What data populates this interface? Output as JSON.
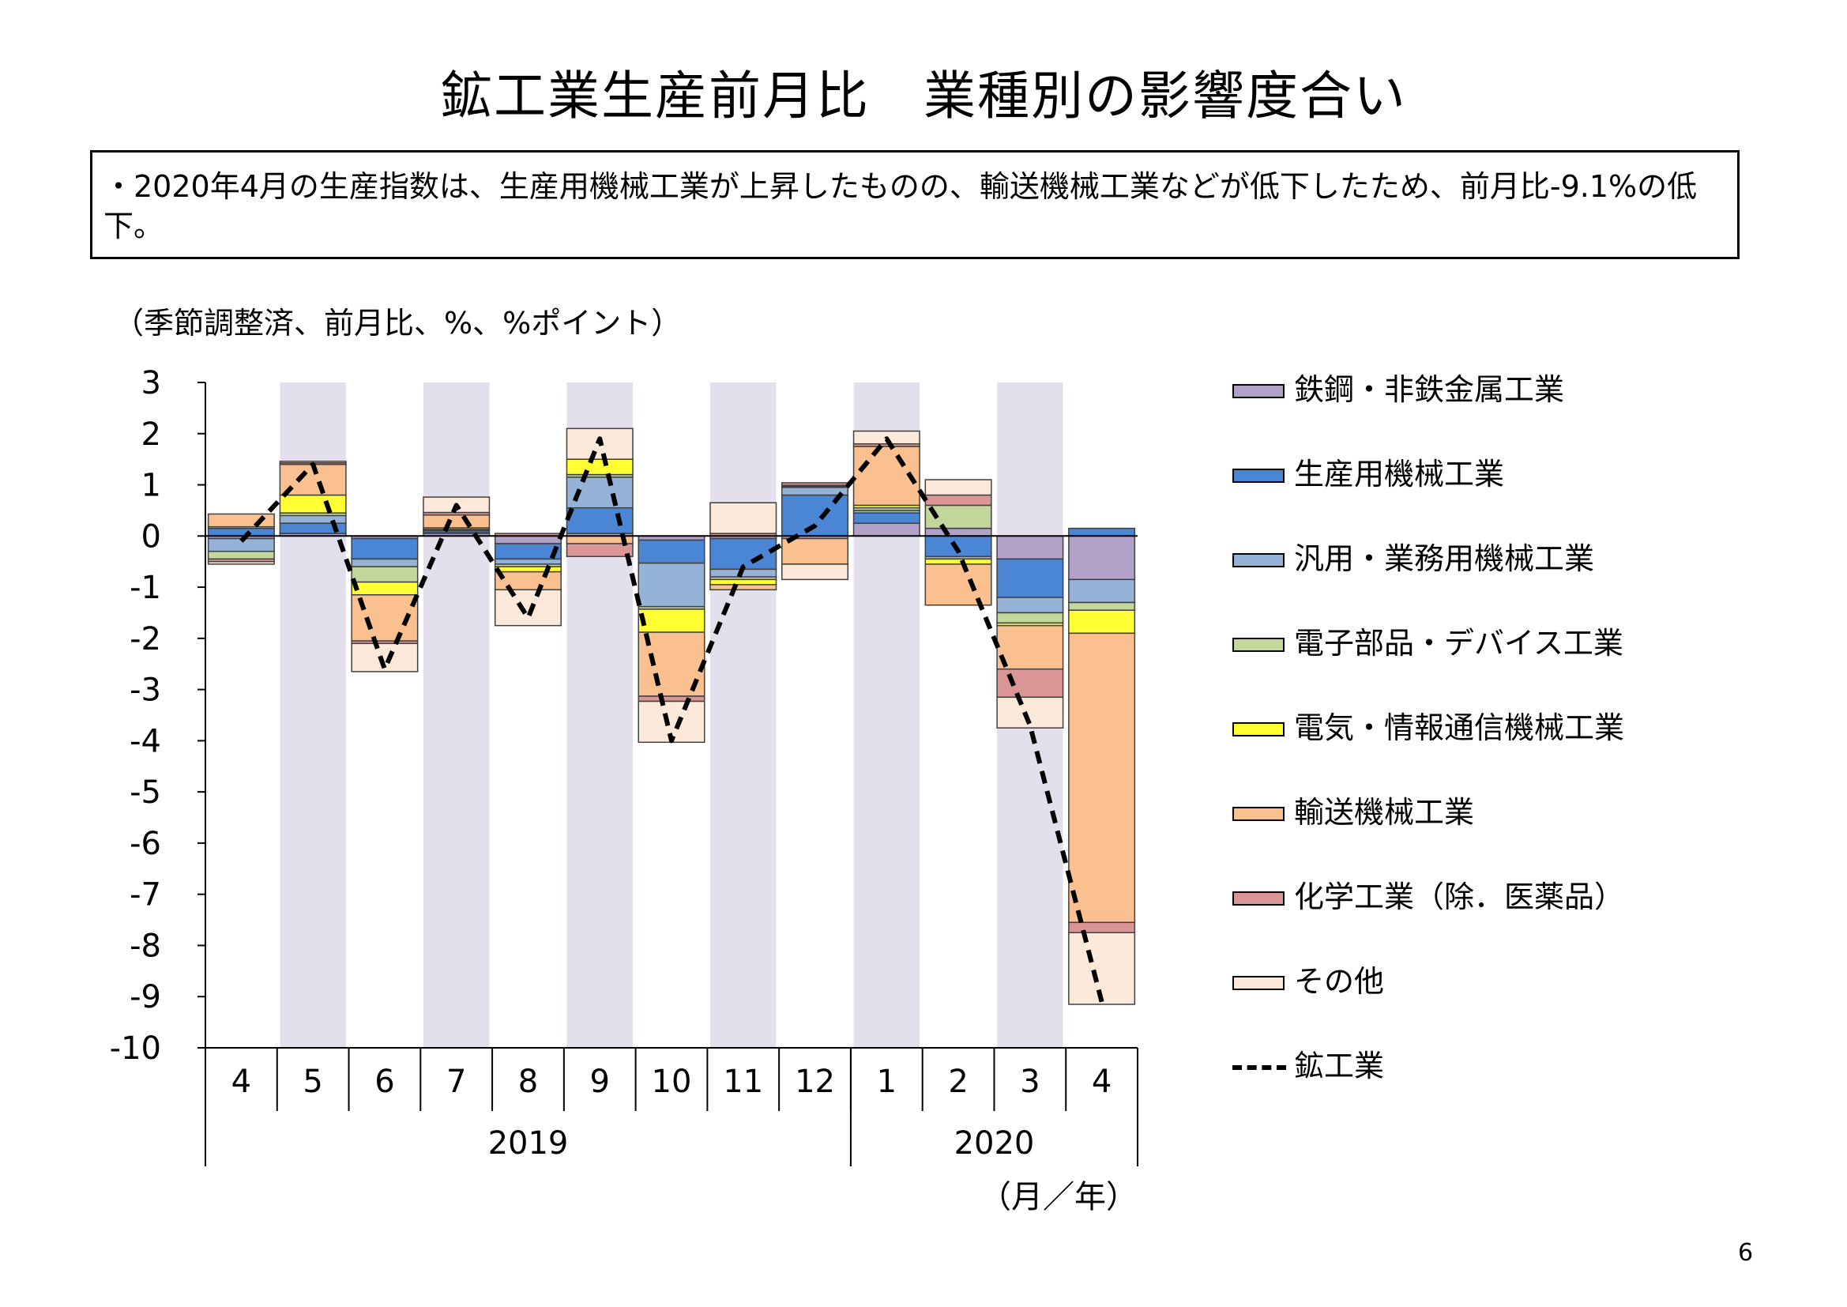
{
  "title": "鉱工業生産前月比　業種別の影響度合い",
  "summary": "・2020年4月の生産指数は、生産用機械工業が上昇したものの、輸送機械工業などが低下したため、前月比-9.1%の低下。",
  "page_number": "6",
  "chart_data": {
    "type": "bar",
    "stacked": true,
    "unit_label": "（季節調整済、前月比、%、%ポイント）",
    "x_unit_label": "（月／年）",
    "categories": [
      "4",
      "5",
      "6",
      "7",
      "8",
      "9",
      "10",
      "11",
      "12",
      "1",
      "2",
      "3",
      "4"
    ],
    "year_groups": [
      {
        "label": "2019",
        "months": [
          "4",
          "5",
          "6",
          "7",
          "8",
          "9",
          "10",
          "11",
          "12"
        ]
      },
      {
        "label": "2020",
        "months": [
          "1",
          "2",
          "3",
          "4"
        ]
      }
    ],
    "shaded_categories": [
      "5",
      "7",
      "9",
      "11",
      "1",
      "3"
    ],
    "ylim": [
      -10,
      3
    ],
    "yticks": [
      "3",
      "2",
      "1",
      "0",
      "-1",
      "-2",
      "-3",
      "-4",
      "-5",
      "-6",
      "-7",
      "-8",
      "-9",
      "-10"
    ],
    "series": [
      {
        "name": "鉄鋼・非鉄金属工業",
        "color": "#B3A2C7",
        "values": [
          -0.05,
          0.05,
          -0.05,
          0.05,
          -0.15,
          0.05,
          -0.08,
          -0.05,
          -0.05,
          0.25,
          0.15,
          -0.45,
          -0.85
        ]
      },
      {
        "name": "生産用機械工業",
        "color": "#4A86D4",
        "values": [
          0.15,
          0.2,
          -0.4,
          0.03,
          -0.3,
          0.5,
          -0.45,
          -0.6,
          0.8,
          0.2,
          -0.4,
          -0.75,
          0.15
        ]
      },
      {
        "name": "汎用・業務用機械工業",
        "color": "#95B3D7",
        "values": [
          -0.25,
          0.15,
          -0.15,
          0.03,
          -0.1,
          0.6,
          -0.85,
          -0.15,
          0.15,
          0.05,
          -0.05,
          -0.3,
          -0.45
        ]
      },
      {
        "name": "電子部品・デバイス工業",
        "color": "#C3D69B",
        "values": [
          -0.15,
          0.05,
          -0.3,
          0.02,
          -0.05,
          0.05,
          -0.05,
          -0.05,
          0.02,
          0.05,
          0.45,
          -0.2,
          -0.15
        ]
      },
      {
        "name": "電気・情報通信機械工業",
        "color": "#FFFF33",
        "values": [
          0.03,
          0.35,
          -0.25,
          0.03,
          -0.1,
          0.3,
          -0.45,
          -0.1,
          0.02,
          0.05,
          -0.1,
          -0.05,
          -0.45
        ]
      },
      {
        "name": "輸送機械工業",
        "color": "#FAC090",
        "values": [
          0.25,
          0.6,
          -0.9,
          0.25,
          -0.35,
          -0.15,
          -1.25,
          -0.1,
          -0.5,
          1.15,
          -0.8,
          -0.85,
          -5.65
        ]
      },
      {
        "name": "化学工業（除．医薬品）",
        "color": "#D99694",
        "values": [
          -0.05,
          0.03,
          -0.05,
          0.05,
          0.05,
          -0.25,
          -0.1,
          0.05,
          0.05,
          0.05,
          0.2,
          -0.55,
          -0.2
        ]
      },
      {
        "name": "その他",
        "color": "#FDE9D9",
        "values": [
          -0.05,
          0.03,
          -0.55,
          0.3,
          -0.7,
          0.6,
          -0.8,
          0.6,
          -0.3,
          0.25,
          0.3,
          -0.6,
          -1.4
        ]
      }
    ],
    "line": {
      "name": "鉱工業",
      "style": "dashed",
      "color": "#000000",
      "values": [
        -0.1,
        1.4,
        -2.6,
        0.6,
        -1.6,
        1.9,
        -4.0,
        -0.6,
        0.2,
        1.9,
        -0.3,
        -3.7,
        -9.1
      ]
    }
  }
}
